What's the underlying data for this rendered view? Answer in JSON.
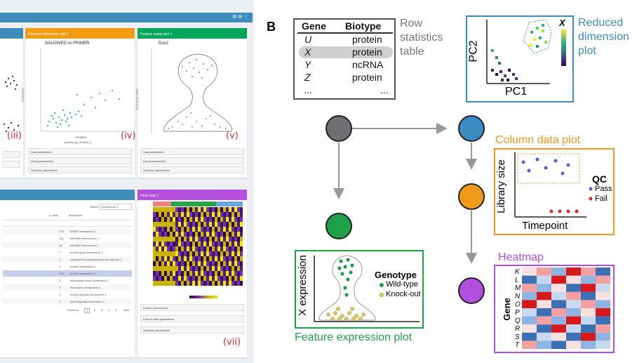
{
  "panel_label_b": "B",
  "screenshot": {
    "plot_iii_label": "(iii)",
    "plot_iv_label": "(iv)",
    "plot_v_label": "(v)",
    "plot_vii_label": "(vii)",
    "box_iv_header": "Reduced dimension plot 1",
    "box_iv_title": "NALIGNED vs PRIMER",
    "box_iv_xlabel": "PRIMER",
    "box_iv_ylabel": "NALIGNED",
    "box_iv_legend": "passes_qc_checks_s",
    "box_v_header": "Feature assay plot 1",
    "box_v_title": "Dux2",
    "box_v_ylabel": "Dux2 (logcounts)",
    "param_rows": [
      "Data parameters",
      "Visual parameters",
      "Selection parameters"
    ],
    "table_search_label": "Search:",
    "table_search_value": "hemandron 1",
    "table_columns": [
      "n_cells",
      "description"
    ],
    "table_rows": [
      {
        "n": "776",
        "desc": "WNAP hemandron 1"
      },
      {
        "n": "113",
        "desc": "BeHnMe hemandron 1"
      },
      {
        "n": "48",
        "desc": "BeHnMe hemandron 2"
      },
      {
        "n": "7",
        "desc": "model-types hemandron 1"
      },
      {
        "n": "3",
        "desc": "cytoplasmic polyadenylated hemandron 1"
      },
      {
        "n": "2",
        "desc": "nucleic hemandron 1"
      },
      {
        "n": "220",
        "desc": "nucleic hemandron 1"
      },
      {
        "n": "3",
        "desc": "developing blood hemandron 1"
      },
      {
        "n": "3",
        "desc": "blood area hemandron 1"
      },
      {
        "n": "3",
        "desc": "empty cytoplas hemandron 1"
      },
      {
        "n": "3",
        "desc": "toll-integrated hemandron 1"
      }
    ],
    "pager": [
      "Previous",
      "1",
      "2",
      "3",
      "4",
      "5",
      "Next"
    ],
    "heatmap_header": "Heat map 1",
    "heatmap_params": [
      "Feature parameters",
      "Column data parameters",
      "Selection parameters"
    ]
  },
  "row_table": {
    "header_gene": "Gene",
    "header_biotype": "Biotype",
    "rows": [
      {
        "gene": "U",
        "biotype": "protein"
      },
      {
        "gene": "X",
        "biotype": "protein"
      },
      {
        "gene": "Y",
        "biotype": "ncRNA"
      },
      {
        "gene": "Z",
        "biotype": "protein"
      },
      {
        "gene": "...",
        "biotype": "..."
      }
    ],
    "caption_line1": "Row",
    "caption_line2": "statistics",
    "caption_line3": "table"
  },
  "reduced_dim": {
    "label_line1": "Reduced",
    "label_line2": "dimension",
    "label_line3": "plot",
    "xlabel": "PC1",
    "ylabel": "PC2",
    "colorbar_label": "X"
  },
  "column_data": {
    "title": "Column data plot",
    "xlabel": "Timepoint",
    "ylabel": "Library size",
    "legend_title": "QC",
    "legend_items": [
      "Pass",
      "Fail"
    ]
  },
  "feature_expr": {
    "title": "Feature expression plot",
    "ylabel": "X expression",
    "legend_title": "Genotype",
    "legend_items": [
      "Wild-type",
      "Knock-out"
    ]
  },
  "heatmap": {
    "title": "Heatmap",
    "ylabel": "Gene",
    "genes": [
      "K",
      "L",
      "M",
      "N",
      "O",
      "P",
      "Q",
      "R",
      "S",
      "T"
    ]
  },
  "colors": {
    "node_grey": "#6e6f73",
    "node_blue": "#3a8dc3",
    "node_green": "#1fa14a",
    "node_orange": "#f09a1a",
    "node_purple": "#b44fe0",
    "border_blue": "#3a8dc3",
    "border_orange": "#f09a1a",
    "border_green": "#1fa14a",
    "border_purple": "#b44fe0",
    "border_grey": "#555555",
    "fail_red": "#e0262a",
    "pass_blue": "#5b5bd6"
  }
}
